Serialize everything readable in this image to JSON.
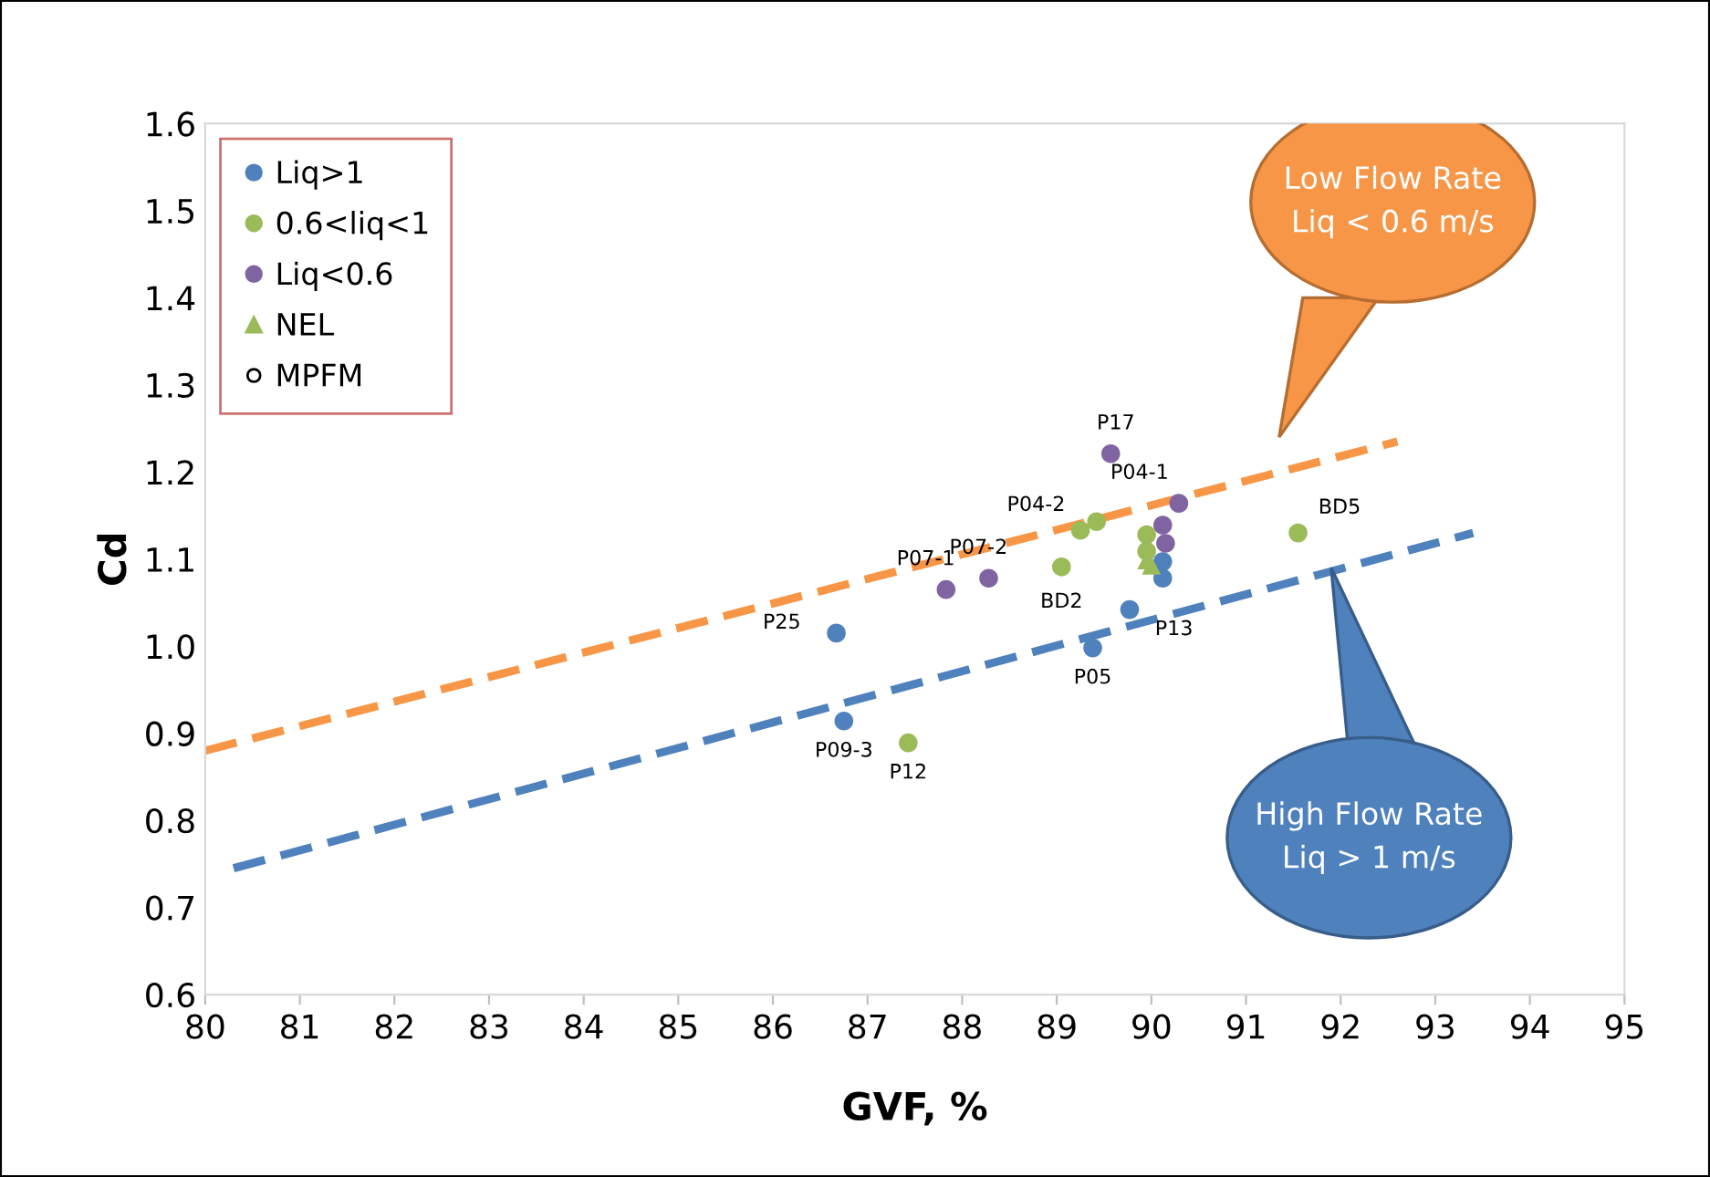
{
  "chart_data": {
    "type": "scatter",
    "xlabel": "GVF, %",
    "ylabel": "Cd",
    "xlim": [
      80,
      95
    ],
    "xticks": [
      80,
      81,
      82,
      83,
      84,
      85,
      86,
      87,
      88,
      89,
      90,
      91,
      92,
      93,
      94,
      95
    ],
    "ylim": [
      0.6,
      1.6
    ],
    "yticks": [
      {
        "value": 0.6,
        "label": "0.6"
      },
      {
        "value": 0.7,
        "label": "0.7"
      },
      {
        "value": 0.8,
        "label": "0.8"
      },
      {
        "value": 0.9,
        "label": "0.9"
      },
      {
        "value": 1.0,
        "label": "1.0"
      },
      {
        "value": 1.1,
        "label": "1.1"
      },
      {
        "value": 1.2,
        "label": "1.2"
      },
      {
        "value": 1.3,
        "label": "1.3"
      },
      {
        "value": 1.4,
        "label": "1.4"
      },
      {
        "value": 1.5,
        "label": "1.5"
      },
      {
        "value": 1.6,
        "label": "1.6"
      }
    ],
    "grid": false,
    "legend": "top left",
    "marker": "circle",
    "series": [
      {
        "name": "Liq>1",
        "color": "#4f81bd",
        "x": [
          86.67,
          86.75,
          89.38,
          89.77,
          90.12,
          90.12
        ],
        "values": [
          1.015,
          0.914,
          0.998,
          1.042,
          1.078,
          1.097
        ]
      },
      {
        "name": "0.6<liq<1",
        "color": "#9bbb59",
        "x": [
          87.43,
          89.05,
          89.25,
          89.42,
          91.55,
          89.95,
          89.95
        ],
        "values": [
          0.889,
          1.091,
          1.133,
          1.143,
          1.13,
          1.128,
          1.109
        ]
      },
      {
        "name": "Liq<0.6",
        "color": "#8064a2",
        "x": [
          89.57,
          87.83,
          88.28,
          90.29,
          90.12,
          90.15
        ],
        "values": [
          1.221,
          1.065,
          1.078,
          1.164,
          1.139,
          1.118
        ]
      },
      {
        "name": "NEL",
        "color": "#9bbb59",
        "marker": "triangle",
        "x": [
          89.95,
          90.0
        ],
        "values": [
          1.099,
          1.093
        ]
      },
      {
        "name": "MPFM",
        "color": "#000000"
      },
      {
        "type": "line",
        "color": "#f79646",
        "line_style": "dashed",
        "marker": "none",
        "x": [
          80,
          92.6
        ],
        "values": [
          0.88,
          1.235
        ]
      },
      {
        "type": "line",
        "color": "#4f81bd",
        "line_style": "dashed",
        "marker": "none",
        "x": [
          80.3,
          93.4
        ],
        "values": [
          0.745,
          1.13
        ]
      }
    ],
    "annotations": [
      {
        "text": "P25",
        "x": 86.67,
        "y": 1.015
      },
      {
        "text": "P09-3",
        "x": 86.75,
        "y": 0.914
      },
      {
        "text": "P05",
        "x": 89.38,
        "y": 0.998
      },
      {
        "text": "P13",
        "x": 89.77,
        "y": 1.042
      },
      {
        "text": "P12",
        "x": 87.43,
        "y": 0.889
      },
      {
        "text": "BD2",
        "x": 89.05,
        "y": 1.091
      },
      {
        "text": "P04-2",
        "x": 89.25,
        "y": 1.133
      },
      {
        "text": "BD5",
        "x": 91.55,
        "y": 1.13
      },
      {
        "text": "P17",
        "x": 89.57,
        "y": 1.221
      },
      {
        "text": "P07-1",
        "x": 87.83,
        "y": 1.065
      },
      {
        "text": "P07-2",
        "x": 88.28,
        "y": 1.078
      },
      {
        "text": "P04-1",
        "x": 90.29,
        "y": 1.164
      },
      "Low Flow Rate\nLiq < 0.6 m/s",
      "High Flow Rate\nLiq > 1 m/s"
    ]
  }
}
